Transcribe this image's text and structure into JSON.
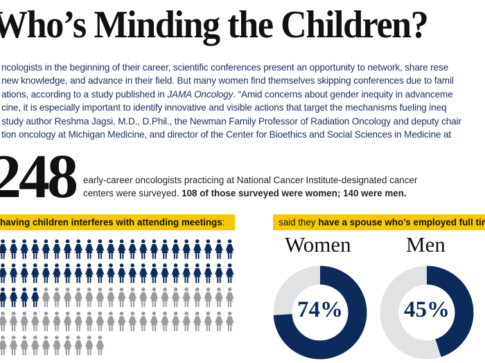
{
  "title": "Who’s Minding the Children?",
  "intro_lines": [
    [
      "ncologists in the beginning of their career, scientific conferences present an opportunity to network, share rese"
    ],
    [
      "new knowledge, and advance in their field. But many women find themselves skipping conferences due to famil"
    ],
    [
      "ations, according to a study published in ",
      "JAMA Oncology",
      ". “Amid concerns about gender inequity in advanceme"
    ],
    [
      "cine, it is especially important to identify innovative and visible actions that target the mechanisms fueling ineq"
    ],
    [
      "study author Reshma Jagsi, M.D., D.Phil., the Newman Family Professor of Radiation Oncology and deputy chair"
    ],
    [
      "tion oncology at Michigan Medicine, and director of the Center for Bioethics and Social Sciences in Medicine at"
    ]
  ],
  "survey": {
    "number": "248",
    "line1": "early-career oncologists practicing at National Cancer Institute-designated cancer",
    "line2_plain": "centers were surveyed. ",
    "line2_bold": "108 of those surveyed were women; 140 were men."
  },
  "children_banner": {
    "bold": "having children interferes with attending meetings",
    "suffix": ":"
  },
  "pictogram": {
    "total": 98,
    "highlighted": 48,
    "per_row": 22,
    "icon": "woman-icon",
    "highlight_color": "#0d2a5c",
    "base_color": "#9b9ca0"
  },
  "spouse_banner": {
    "plain": "said they ",
    "bold": "have a spouse who’s employed full tim"
  },
  "donuts": [
    {
      "label": "Women",
      "value": 74,
      "text": "74%"
    },
    {
      "label": "Men",
      "value": 45,
      "text": "45%"
    }
  ],
  "colors": {
    "navy": "#0d2a5c",
    "ring_gray": "#e1e2e4",
    "yellow": "#f7c900"
  }
}
